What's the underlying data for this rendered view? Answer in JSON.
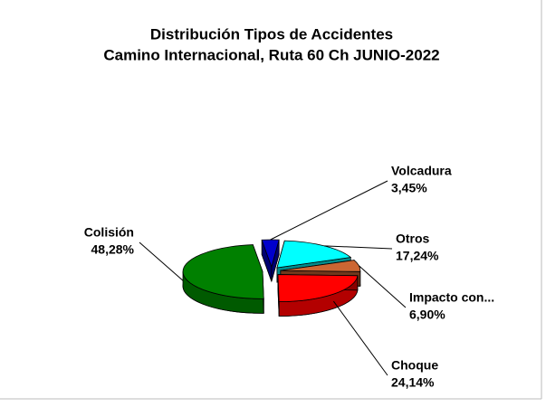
{
  "chart_data": {
    "type": "pie",
    "title": "Distribución Tipos de Accidentes",
    "subtitle": "Camino Internacional, Ruta 60 Ch JUNIO-2022",
    "categories": [
      "Volcadura",
      "Otros",
      "Impacto  con...",
      "Choque",
      "Colisión"
    ],
    "values": [
      3.45,
      17.24,
      6.9,
      24.14,
      48.28
    ],
    "value_labels": [
      "3,45%",
      "17,24%",
      "6,90%",
      "24,14%",
      "48,28%"
    ],
    "colors": [
      "#0000cc",
      "#00ffff",
      "#cc6633",
      "#ff0000",
      "#008000"
    ]
  }
}
